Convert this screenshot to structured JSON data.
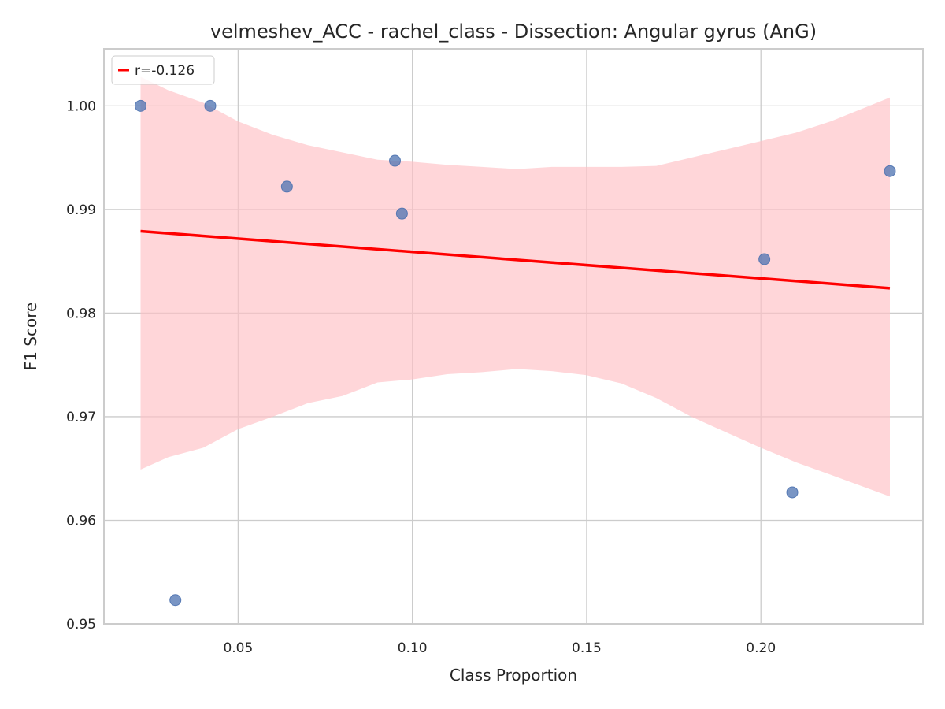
{
  "chart_data": {
    "type": "scatter",
    "title": "velmeshev_ACC - rachel_class - Dissection: Angular gyrus (AnG)",
    "xlabel": "Class Proportion",
    "ylabel": "F1 Score",
    "xlim": [
      0.0115,
      0.2465
    ],
    "ylim": [
      0.95,
      1.0055
    ],
    "x_ticks": [
      0.05,
      0.1,
      0.15,
      0.2
    ],
    "x_tick_labels": [
      "0.05",
      "0.10",
      "0.15",
      "0.20"
    ],
    "y_ticks": [
      0.95,
      0.96,
      0.97,
      0.98,
      0.99,
      1.0
    ],
    "y_tick_labels": [
      "0.95",
      "0.96",
      "0.97",
      "0.98",
      "0.99",
      "1.00"
    ],
    "grid": true,
    "legend_placement": "upper-left",
    "points": [
      {
        "x": 0.022,
        "y": 1.0
      },
      {
        "x": 0.032,
        "y": 0.9523
      },
      {
        "x": 0.042,
        "y": 1.0
      },
      {
        "x": 0.064,
        "y": 0.9922
      },
      {
        "x": 0.095,
        "y": 0.9947
      },
      {
        "x": 0.097,
        "y": 0.9896
      },
      {
        "x": 0.201,
        "y": 0.9852
      },
      {
        "x": 0.209,
        "y": 0.9627
      },
      {
        "x": 0.237,
        "y": 0.9937
      }
    ],
    "regression": {
      "label": "r=-0.126",
      "x": [
        0.022,
        0.237
      ],
      "y": [
        0.9879,
        0.9824
      ]
    },
    "confidence_band": {
      "x": [
        0.022,
        0.03,
        0.04,
        0.05,
        0.06,
        0.07,
        0.08,
        0.09,
        0.1,
        0.11,
        0.12,
        0.13,
        0.14,
        0.15,
        0.16,
        0.17,
        0.18,
        0.19,
        0.2,
        0.21,
        0.22,
        0.237
      ],
      "upper": [
        1.0028,
        1.0015,
        1.0003,
        0.9985,
        0.9972,
        0.9962,
        0.9955,
        0.9948,
        0.9946,
        0.9943,
        0.9941,
        0.9939,
        0.9941,
        0.9941,
        0.9941,
        0.9942,
        0.995,
        0.9958,
        0.9966,
        0.9974,
        0.9985,
        1.0008
      ],
      "lower": [
        0.9649,
        0.9661,
        0.967,
        0.9688,
        0.97,
        0.9713,
        0.972,
        0.9733,
        0.9736,
        0.9741,
        0.9743,
        0.9746,
        0.9744,
        0.974,
        0.9732,
        0.9718,
        0.97,
        0.9685,
        0.967,
        0.9656,
        0.9644,
        0.9623
      ]
    },
    "colors": {
      "points": "#4c72b0",
      "regression": "#ff0000",
      "band": "#ffc0c4",
      "grid": "#cccccc",
      "spine": "#cccccc"
    }
  }
}
